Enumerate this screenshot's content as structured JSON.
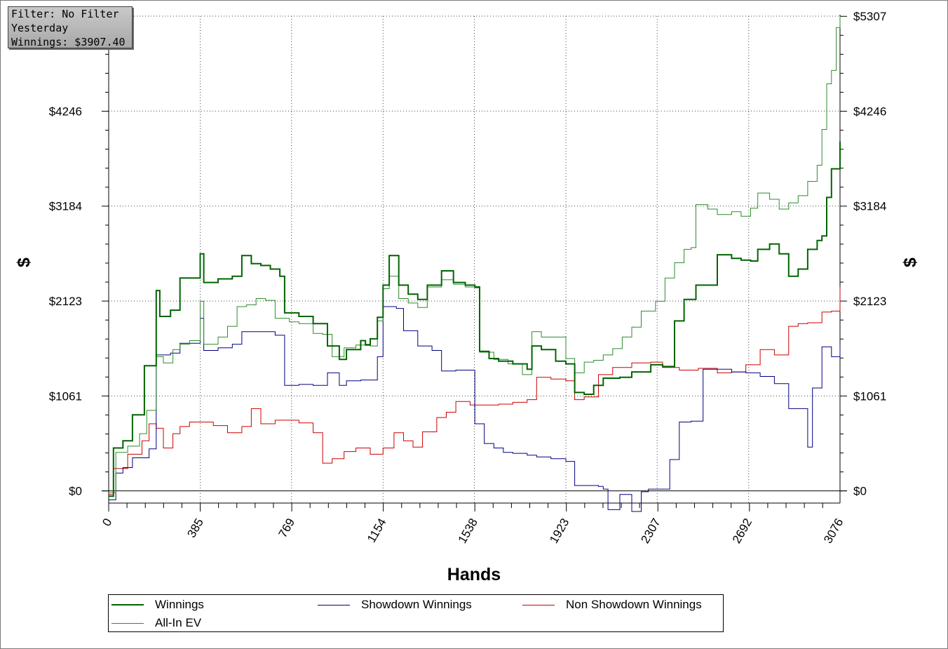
{
  "filter_box": {
    "line1": "Filter: No Filter",
    "line2": "Yesterday",
    "line3": "Winnings: $3907.40"
  },
  "chart_data": {
    "type": "line",
    "xlabel": "Hands",
    "ylabel": "$",
    "xlim": [
      0,
      3076
    ],
    "ylim": [
      -136,
      5307
    ],
    "x_ticks": [
      "0",
      "385",
      "769",
      "1154",
      "1538",
      "1923",
      "2307",
      "2692",
      "3076"
    ],
    "y_ticks": [
      "$0",
      "$1061",
      "$2123",
      "$3184",
      "$4246",
      "$5307"
    ],
    "grid": true,
    "legend_position": "bottom",
    "series": [
      {
        "name": "Winnings",
        "color": "#006400",
        "points": [
          [
            0,
            -60
          ],
          [
            20,
            480
          ],
          [
            60,
            560
          ],
          [
            100,
            850
          ],
          [
            150,
            1400
          ],
          [
            200,
            2240
          ],
          [
            215,
            1950
          ],
          [
            260,
            2020
          ],
          [
            300,
            2380
          ],
          [
            385,
            2650
          ],
          [
            400,
            2330
          ],
          [
            460,
            2370
          ],
          [
            520,
            2400
          ],
          [
            560,
            2630
          ],
          [
            600,
            2540
          ],
          [
            640,
            2520
          ],
          [
            680,
            2480
          ],
          [
            720,
            2400
          ],
          [
            740,
            1990
          ],
          [
            800,
            1950
          ],
          [
            860,
            1870
          ],
          [
            920,
            1620
          ],
          [
            970,
            1470
          ],
          [
            1000,
            1580
          ],
          [
            1060,
            1680
          ],
          [
            1080,
            1630
          ],
          [
            1100,
            1700
          ],
          [
            1130,
            1940
          ],
          [
            1154,
            2300
          ],
          [
            1180,
            2630
          ],
          [
            1220,
            2300
          ],
          [
            1260,
            2200
          ],
          [
            1300,
            2140
          ],
          [
            1340,
            2300
          ],
          [
            1400,
            2460
          ],
          [
            1450,
            2330
          ],
          [
            1500,
            2300
          ],
          [
            1540,
            2280
          ],
          [
            1560,
            1560
          ],
          [
            1600,
            1480
          ],
          [
            1640,
            1450
          ],
          [
            1700,
            1420
          ],
          [
            1760,
            1360
          ],
          [
            1780,
            1620
          ],
          [
            1820,
            1580
          ],
          [
            1880,
            1450
          ],
          [
            1923,
            1420
          ],
          [
            1960,
            1100
          ],
          [
            2000,
            1080
          ],
          [
            2040,
            1180
          ],
          [
            2080,
            1260
          ],
          [
            2150,
            1270
          ],
          [
            2200,
            1330
          ],
          [
            2280,
            1410
          ],
          [
            2330,
            1390
          ],
          [
            2380,
            1900
          ],
          [
            2420,
            2140
          ],
          [
            2470,
            2300
          ],
          [
            2560,
            2640
          ],
          [
            2620,
            2600
          ],
          [
            2660,
            2580
          ],
          [
            2700,
            2570
          ],
          [
            2730,
            2700
          ],
          [
            2780,
            2760
          ],
          [
            2820,
            2650
          ],
          [
            2860,
            2400
          ],
          [
            2900,
            2480
          ],
          [
            2940,
            2700
          ],
          [
            2980,
            2800
          ],
          [
            3000,
            2850
          ],
          [
            3020,
            3280
          ],
          [
            3040,
            3600
          ],
          [
            3076,
            3907.4
          ]
        ]
      },
      {
        "name": "Showdown Winnings",
        "color": "#000080",
        "points": [
          [
            0,
            -100
          ],
          [
            30,
            200
          ],
          [
            60,
            260
          ],
          [
            100,
            370
          ],
          [
            170,
            470
          ],
          [
            200,
            1520
          ],
          [
            260,
            1540
          ],
          [
            300,
            1650
          ],
          [
            385,
            1930
          ],
          [
            400,
            1570
          ],
          [
            460,
            1600
          ],
          [
            520,
            1640
          ],
          [
            560,
            1780
          ],
          [
            640,
            1780
          ],
          [
            700,
            1740
          ],
          [
            740,
            1180
          ],
          [
            800,
            1190
          ],
          [
            860,
            1180
          ],
          [
            920,
            1320
          ],
          [
            970,
            1180
          ],
          [
            1000,
            1230
          ],
          [
            1060,
            1240
          ],
          [
            1120,
            1240
          ],
          [
            1130,
            1500
          ],
          [
            1154,
            2060
          ],
          [
            1210,
            2040
          ],
          [
            1240,
            1790
          ],
          [
            1300,
            1620
          ],
          [
            1360,
            1570
          ],
          [
            1400,
            1340
          ],
          [
            1460,
            1350
          ],
          [
            1520,
            1350
          ],
          [
            1540,
            750
          ],
          [
            1580,
            530
          ],
          [
            1620,
            480
          ],
          [
            1660,
            430
          ],
          [
            1700,
            420
          ],
          [
            1760,
            400
          ],
          [
            1800,
            380
          ],
          [
            1860,
            360
          ],
          [
            1923,
            330
          ],
          [
            1960,
            60
          ],
          [
            2000,
            60
          ],
          [
            2060,
            50
          ],
          [
            2080,
            20
          ],
          [
            2100,
            -210
          ],
          [
            2150,
            -40
          ],
          [
            2200,
            -230
          ],
          [
            2240,
            -10
          ],
          [
            2270,
            20
          ],
          [
            2320,
            20
          ],
          [
            2360,
            350
          ],
          [
            2400,
            770
          ],
          [
            2450,
            780
          ],
          [
            2500,
            1360
          ],
          [
            2560,
            1360
          ],
          [
            2620,
            1330
          ],
          [
            2680,
            1320
          ],
          [
            2740,
            1280
          ],
          [
            2800,
            1200
          ],
          [
            2860,
            920
          ],
          [
            2900,
            920
          ],
          [
            2940,
            490
          ],
          [
            2960,
            1150
          ],
          [
            3000,
            1610
          ],
          [
            3040,
            1500
          ],
          [
            3076,
            1650
          ]
        ]
      },
      {
        "name": "Non Showdown Winnings",
        "color": "#cc0000",
        "points": [
          [
            0,
            -40
          ],
          [
            20,
            250
          ],
          [
            80,
            410
          ],
          [
            140,
            560
          ],
          [
            170,
            750
          ],
          [
            200,
            700
          ],
          [
            230,
            480
          ],
          [
            270,
            640
          ],
          [
            300,
            720
          ],
          [
            340,
            770
          ],
          [
            385,
            770
          ],
          [
            440,
            730
          ],
          [
            500,
            650
          ],
          [
            560,
            720
          ],
          [
            600,
            920
          ],
          [
            640,
            750
          ],
          [
            700,
            790
          ],
          [
            760,
            790
          ],
          [
            800,
            760
          ],
          [
            860,
            650
          ],
          [
            900,
            310
          ],
          [
            940,
            360
          ],
          [
            990,
            440
          ],
          [
            1040,
            480
          ],
          [
            1100,
            410
          ],
          [
            1154,
            480
          ],
          [
            1200,
            650
          ],
          [
            1240,
            560
          ],
          [
            1280,
            490
          ],
          [
            1320,
            660
          ],
          [
            1380,
            820
          ],
          [
            1420,
            880
          ],
          [
            1460,
            1000
          ],
          [
            1520,
            960
          ],
          [
            1580,
            960
          ],
          [
            1640,
            970
          ],
          [
            1700,
            990
          ],
          [
            1760,
            1020
          ],
          [
            1800,
            1270
          ],
          [
            1860,
            1250
          ],
          [
            1923,
            1230
          ],
          [
            1960,
            1020
          ],
          [
            2000,
            1050
          ],
          [
            2060,
            1300
          ],
          [
            2120,
            1380
          ],
          [
            2200,
            1430
          ],
          [
            2280,
            1440
          ],
          [
            2330,
            1380
          ],
          [
            2400,
            1350
          ],
          [
            2480,
            1370
          ],
          [
            2560,
            1320
          ],
          [
            2620,
            1330
          ],
          [
            2680,
            1410
          ],
          [
            2740,
            1580
          ],
          [
            2800,
            1520
          ],
          [
            2860,
            1840
          ],
          [
            2900,
            1870
          ],
          [
            2940,
            1880
          ],
          [
            3000,
            2000
          ],
          [
            3040,
            2010
          ],
          [
            3076,
            2280
          ]
        ]
      },
      {
        "name": "All-In EV",
        "color": "#2e8b2e",
        "points": [
          [
            0,
            -20
          ],
          [
            30,
            430
          ],
          [
            80,
            500
          ],
          [
            130,
            640
          ],
          [
            160,
            900
          ],
          [
            200,
            1500
          ],
          [
            230,
            1430
          ],
          [
            270,
            1580
          ],
          [
            300,
            1640
          ],
          [
            340,
            1680
          ],
          [
            385,
            2120
          ],
          [
            400,
            1640
          ],
          [
            460,
            1720
          ],
          [
            500,
            1840
          ],
          [
            540,
            2060
          ],
          [
            580,
            2080
          ],
          [
            620,
            2150
          ],
          [
            660,
            2130
          ],
          [
            700,
            1930
          ],
          [
            760,
            1890
          ],
          [
            800,
            1870
          ],
          [
            860,
            1760
          ],
          [
            900,
            1750
          ],
          [
            940,
            1500
          ],
          [
            990,
            1600
          ],
          [
            1040,
            1630
          ],
          [
            1080,
            1640
          ],
          [
            1100,
            1620
          ],
          [
            1130,
            1900
          ],
          [
            1154,
            2260
          ],
          [
            1180,
            2400
          ],
          [
            1220,
            2150
          ],
          [
            1260,
            2100
          ],
          [
            1300,
            2050
          ],
          [
            1340,
            2280
          ],
          [
            1400,
            2360
          ],
          [
            1450,
            2310
          ],
          [
            1500,
            2280
          ],
          [
            1540,
            2270
          ],
          [
            1560,
            1550
          ],
          [
            1620,
            1470
          ],
          [
            1680,
            1420
          ],
          [
            1740,
            1300
          ],
          [
            1780,
            1780
          ],
          [
            1820,
            1720
          ],
          [
            1880,
            1720
          ],
          [
            1923,
            1480
          ],
          [
            1960,
            1320
          ],
          [
            2000,
            1440
          ],
          [
            2040,
            1460
          ],
          [
            2080,
            1520
          ],
          [
            2120,
            1590
          ],
          [
            2160,
            1720
          ],
          [
            2200,
            1830
          ],
          [
            2240,
            2010
          ],
          [
            2300,
            2120
          ],
          [
            2340,
            2380
          ],
          [
            2380,
            2550
          ],
          [
            2420,
            2700
          ],
          [
            2450,
            2720
          ],
          [
            2470,
            3200
          ],
          [
            2520,
            3150
          ],
          [
            2560,
            3090
          ],
          [
            2620,
            3120
          ],
          [
            2660,
            3070
          ],
          [
            2700,
            3160
          ],
          [
            2730,
            3330
          ],
          [
            2780,
            3260
          ],
          [
            2820,
            3150
          ],
          [
            2860,
            3220
          ],
          [
            2900,
            3300
          ],
          [
            2940,
            3460
          ],
          [
            2980,
            3640
          ],
          [
            3000,
            4040
          ],
          [
            3020,
            4550
          ],
          [
            3040,
            4700
          ],
          [
            3060,
            5180
          ],
          [
            3076,
            5307
          ]
        ]
      }
    ]
  },
  "legend": {
    "items": [
      {
        "label": "Winnings",
        "color": "#006400"
      },
      {
        "label": "Showdown Winnings",
        "color": "#000080"
      },
      {
        "label": "Non Showdown Winnings",
        "color": "#cc0000"
      },
      {
        "label": "All-In EV",
        "color": "#2e8b2e"
      }
    ]
  }
}
